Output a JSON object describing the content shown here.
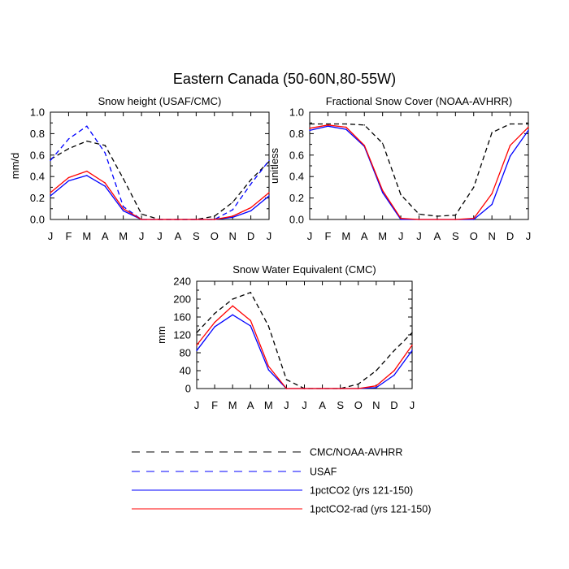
{
  "figure": {
    "title": "Eastern Canada (50-60N,80-55W)"
  },
  "legend": {
    "position": "bottom-center",
    "items": [
      {
        "key": "cmc",
        "label": "CMC/NOAA-AVHRR",
        "color": "#000000",
        "style": "dashed"
      },
      {
        "key": "usaf",
        "label": "USAF",
        "color": "#0000ff",
        "style": "dashed"
      },
      {
        "key": "co2",
        "label": "1pctCO2 (yrs 121-150)",
        "color": "#0000ff",
        "style": "solid"
      },
      {
        "key": "rad",
        "label": "1pctCO2-rad (yrs 121-150)",
        "color": "#ff0000",
        "style": "solid"
      }
    ]
  },
  "chart_data": [
    {
      "type": "line",
      "title": "Snow height (USAF/CMC)",
      "xlabel": "",
      "ylabel": "mm/d",
      "categories": [
        "J",
        "F",
        "M",
        "A",
        "M",
        "J",
        "J",
        "A",
        "S",
        "O",
        "N",
        "D",
        "J"
      ],
      "yticks": [
        "0.0",
        "0.2",
        "0.4",
        "0.6",
        "0.8",
        "1.0"
      ],
      "ylim": [
        0,
        1.0
      ],
      "grid": false,
      "series": [
        {
          "name": "CMC/NOAA-AVHRR",
          "color": "#000000",
          "dash": true,
          "values": [
            0.56,
            0.66,
            0.73,
            0.69,
            0.38,
            0.05,
            0,
            0,
            0,
            0.03,
            0.16,
            0.37,
            0.54
          ]
        },
        {
          "name": "USAF",
          "color": "#0000ff",
          "dash": true,
          "values": [
            0.55,
            0.75,
            0.87,
            0.62,
            0.12,
            0,
            0,
            0,
            0,
            0,
            0.09,
            0.33,
            0.55
          ]
        },
        {
          "name": "1pctCO2 (yrs 121-150)",
          "color": "#0000ff",
          "dash": false,
          "values": [
            0.22,
            0.36,
            0.41,
            0.31,
            0.08,
            0,
            0,
            0,
            0,
            0,
            0.02,
            0.08,
            0.22
          ]
        },
        {
          "name": "1pctCO2-rad (yrs 121-150)",
          "color": "#ff0000",
          "dash": false,
          "values": [
            0.25,
            0.39,
            0.45,
            0.34,
            0.1,
            0,
            0,
            0,
            0,
            0,
            0.03,
            0.11,
            0.25
          ]
        }
      ]
    },
    {
      "type": "line",
      "title": "Fractional Snow Cover (NOAA-AVHRR)",
      "xlabel": "",
      "ylabel": "unitless",
      "categories": [
        "J",
        "F",
        "M",
        "A",
        "M",
        "J",
        "J",
        "A",
        "S",
        "O",
        "N",
        "D",
        "J"
      ],
      "yticks": [
        "0.0",
        "0.2",
        "0.4",
        "0.6",
        "0.8",
        "1.0"
      ],
      "ylim": [
        0,
        1.0
      ],
      "grid": false,
      "series": [
        {
          "name": "CMC/NOAA-AVHRR",
          "color": "#000000",
          "dash": true,
          "values": [
            0.89,
            0.89,
            0.89,
            0.88,
            0.71,
            0.23,
            0.05,
            0.03,
            0.04,
            0.3,
            0.81,
            0.89,
            0.89
          ]
        },
        {
          "name": "1pctCO2 (yrs 121-150)",
          "color": "#0000ff",
          "dash": false,
          "values": [
            0.83,
            0.87,
            0.84,
            0.68,
            0.25,
            0,
            0,
            0,
            0,
            0,
            0.14,
            0.59,
            0.83
          ]
        },
        {
          "name": "1pctCO2-rad (yrs 121-150)",
          "color": "#ff0000",
          "dash": false,
          "values": [
            0.85,
            0.88,
            0.86,
            0.69,
            0.27,
            0.01,
            0,
            0,
            0,
            0.01,
            0.24,
            0.69,
            0.86
          ]
        }
      ]
    },
    {
      "type": "line",
      "title": "Snow Water Equivalent (CMC)",
      "xlabel": "",
      "ylabel": "mm",
      "categories": [
        "J",
        "F",
        "M",
        "A",
        "M",
        "J",
        "J",
        "A",
        "S",
        "O",
        "N",
        "D",
        "J"
      ],
      "yticks": [
        "0",
        "40",
        "80",
        "120",
        "160",
        "200",
        "240"
      ],
      "ylim": [
        0,
        240
      ],
      "grid": false,
      "series": [
        {
          "name": "CMC/NOAA-AVHRR",
          "color": "#000000",
          "dash": true,
          "values": [
            125,
            168,
            200,
            215,
            140,
            20,
            0,
            0,
            0,
            10,
            40,
            85,
            125
          ]
        },
        {
          "name": "1pctCO2 (yrs 121-150)",
          "color": "#0000ff",
          "dash": false,
          "values": [
            85,
            138,
            165,
            140,
            42,
            0,
            0,
            0,
            0,
            0,
            2,
            30,
            85
          ]
        },
        {
          "name": "1pctCO2-rad (yrs 121-150)",
          "color": "#ff0000",
          "dash": false,
          "values": [
            97,
            148,
            185,
            152,
            50,
            0,
            0,
            0,
            0,
            0,
            6,
            40,
            97
          ]
        }
      ]
    }
  ]
}
